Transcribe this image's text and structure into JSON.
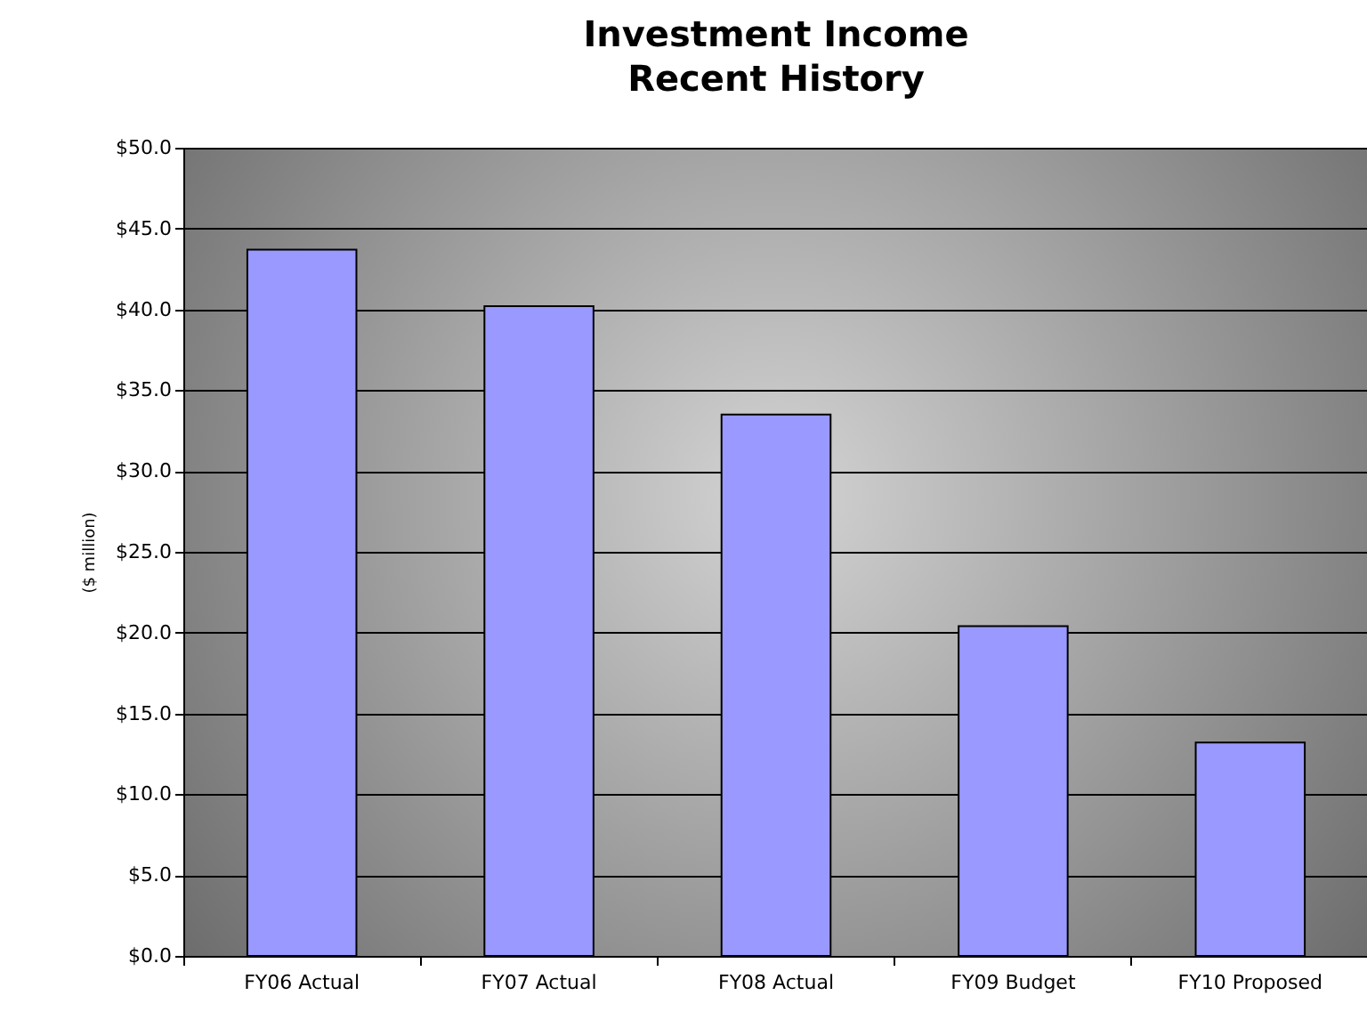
{
  "chart_data": {
    "type": "bar",
    "title": "Investment Income\nRecent History",
    "ylabel": "($ million)",
    "categories": [
      "FY06 Actual",
      "FY07 Actual",
      "FY08 Actual",
      "FY09 Budget",
      "FY10 Proposed"
    ],
    "values": [
      43.7,
      40.2,
      33.5,
      20.4,
      13.2
    ],
    "color": "#9999ff",
    "ylim": [
      0,
      50
    ],
    "yticks": [
      {
        "value": 0,
        "label": "$0.0"
      },
      {
        "value": 5,
        "label": "$5.0"
      },
      {
        "value": 10,
        "label": "$10.0"
      },
      {
        "value": 15,
        "label": "$15.0"
      },
      {
        "value": 20,
        "label": "$20.0"
      },
      {
        "value": 25,
        "label": "$25.0"
      },
      {
        "value": 30,
        "label": "$30.0"
      },
      {
        "value": 35,
        "label": "$35.0"
      },
      {
        "value": 40,
        "label": "$40.0"
      },
      {
        "value": 45,
        "label": "$45.0"
      },
      {
        "value": 50,
        "label": "$50.0"
      }
    ],
    "grid": "y"
  }
}
